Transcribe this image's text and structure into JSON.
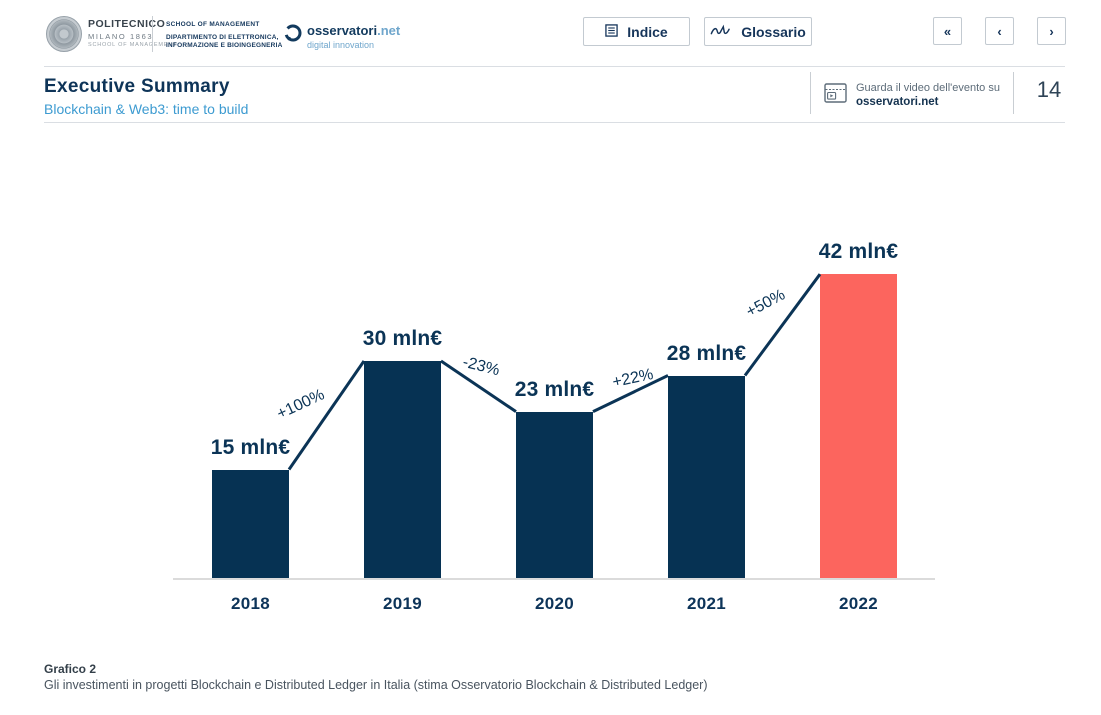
{
  "header": {
    "politecnico_logo": {
      "name": "POLITECNICO",
      "subname": "MILANO 1863",
      "dept": "SCHOOL OF MANAGEMENT"
    },
    "school_block": {
      "line1": "SCHOOL OF MANAGEMENT",
      "line2": "DIPARTIMENTO DI ELETTRONICA,",
      "line3": "INFORMAZIONE E BIOINGEGNERIA"
    },
    "osservatori_logo": {
      "name": "osservatori",
      "tld": ".net",
      "tagline": "digital innovation"
    },
    "indice_button": "Indice",
    "glossario_button": "Glossario",
    "nav_first": "«",
    "nav_prev": "‹",
    "nav_next": "›"
  },
  "titlebar": {
    "title": "Executive Summary",
    "subtitle": "Blockchain & Web3: time to build",
    "video_line1": "Guarda il video dell'evento su",
    "video_line2": "osservatori.net",
    "page_number": "14"
  },
  "chart_data": {
    "type": "bar",
    "title": "",
    "categories": [
      "2018",
      "2019",
      "2020",
      "2021",
      "2022"
    ],
    "values": [
      15,
      30,
      23,
      28,
      42
    ],
    "value_labels": [
      "15 mln€",
      "30 mln€",
      "23 mln€",
      "28 mln€",
      "42 mln€"
    ],
    "pct_changes": [
      "+100%",
      "-23%",
      "+22%",
      "+50%"
    ],
    "unit": "mln€",
    "ylim": [
      0,
      45
    ],
    "bar_colors": [
      "#063253",
      "#063253",
      "#063253",
      "#063253",
      "#FC655E"
    ],
    "line_color": "#0B3456",
    "grid": false,
    "legend": null,
    "connector_line": true
  },
  "caption": {
    "label": "Grafico 2",
    "text": "Gli investimenti in progetti Blockchain e Distributed Ledger in Italia (stima Osservatorio Blockchain & Distributed Ledger)"
  },
  "colors": {
    "navy": "#0B3456",
    "bar_navy": "#063253",
    "coral": "#FC655E",
    "subtitle_blue": "#3D9BD1",
    "light_blue": "#6FA6CC"
  }
}
